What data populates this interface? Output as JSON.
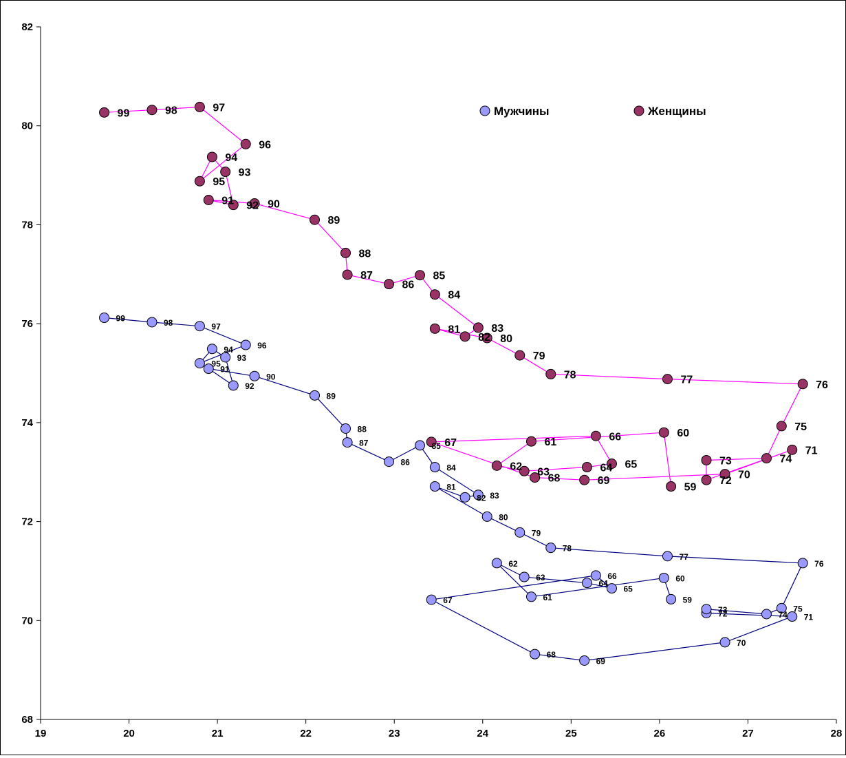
{
  "chart_data": {
    "type": "scatter",
    "title": "",
    "xlabel": "",
    "ylabel": "",
    "xlim": [
      19,
      28
    ],
    "ylim": [
      68,
      82
    ],
    "x_ticks": [
      19,
      20,
      21,
      22,
      23,
      24,
      25,
      26,
      27,
      28
    ],
    "y_ticks": [
      68,
      70,
      72,
      74,
      76,
      78,
      80,
      82
    ],
    "x_tick_labels": [
      "19",
      "20",
      "21",
      "22",
      "23",
      "24",
      "25",
      "26",
      "27",
      "28"
    ],
    "y_tick_labels": [
      "68",
      "70",
      "72",
      "74",
      "76",
      "78",
      "80",
      "82"
    ],
    "legend": {
      "position": "top-right"
    },
    "series": [
      {
        "name": "Мужчины",
        "line_color": "#000080",
        "marker_color": "#9999FF",
        "points": [
          {
            "label": "59",
            "x": 26.13,
            "y": 70.43
          },
          {
            "label": "60",
            "x": 26.05,
            "y": 70.86
          },
          {
            "label": "61",
            "x": 24.55,
            "y": 70.48
          },
          {
            "label": "62",
            "x": 24.16,
            "y": 71.16
          },
          {
            "label": "63",
            "x": 24.47,
            "y": 70.88
          },
          {
            "label": "64",
            "x": 25.18,
            "y": 70.76
          },
          {
            "label": "65",
            "x": 25.46,
            "y": 70.65
          },
          {
            "label": "66",
            "x": 25.28,
            "y": 70.91
          },
          {
            "label": "67",
            "x": 23.42,
            "y": 70.42
          },
          {
            "label": "68",
            "x": 24.59,
            "y": 69.32
          },
          {
            "label": "69",
            "x": 25.15,
            "y": 69.19
          },
          {
            "label": "70",
            "x": 26.74,
            "y": 69.56
          },
          {
            "label": "71",
            "x": 27.5,
            "y": 70.08
          },
          {
            "label": "72",
            "x": 26.53,
            "y": 70.15
          },
          {
            "label": "73",
            "x": 26.53,
            "y": 70.23
          },
          {
            "label": "74",
            "x": 27.21,
            "y": 70.13
          },
          {
            "label": "75",
            "x": 27.38,
            "y": 70.25
          },
          {
            "label": "76",
            "x": 27.62,
            "y": 71.16
          },
          {
            "label": "77",
            "x": 26.09,
            "y": 71.3
          },
          {
            "label": "78",
            "x": 24.77,
            "y": 71.47
          },
          {
            "label": "79",
            "x": 24.42,
            "y": 71.78
          },
          {
            "label": "80",
            "x": 24.05,
            "y": 72.1
          },
          {
            "label": "81",
            "x": 23.46,
            "y": 72.71
          },
          {
            "label": "82",
            "x": 23.8,
            "y": 72.49
          },
          {
            "label": "83",
            "x": 23.95,
            "y": 72.54
          },
          {
            "label": "84",
            "x": 23.46,
            "y": 73.1
          },
          {
            "label": "85",
            "x": 23.29,
            "y": 73.54
          },
          {
            "label": "86",
            "x": 22.94,
            "y": 73.21
          },
          {
            "label": "87",
            "x": 22.47,
            "y": 73.6
          },
          {
            "label": "88",
            "x": 22.45,
            "y": 73.88
          },
          {
            "label": "89",
            "x": 22.1,
            "y": 74.55
          },
          {
            "label": "90",
            "x": 21.42,
            "y": 74.94
          },
          {
            "label": "91",
            "x": 20.9,
            "y": 75.09
          },
          {
            "label": "92",
            "x": 21.18,
            "y": 74.75
          },
          {
            "label": "93",
            "x": 21.09,
            "y": 75.32
          },
          {
            "label": "94",
            "x": 20.94,
            "y": 75.49
          },
          {
            "label": "95",
            "x": 20.8,
            "y": 75.2
          },
          {
            "label": "96",
            "x": 21.32,
            "y": 75.57
          },
          {
            "label": "97",
            "x": 20.8,
            "y": 75.95
          },
          {
            "label": "98",
            "x": 20.26,
            "y": 76.03
          },
          {
            "label": "99",
            "x": 19.72,
            "y": 76.12
          }
        ]
      },
      {
        "name": "Женщины",
        "line_color": "#FF00FF",
        "marker_color": "#993366",
        "points": [
          {
            "label": "59",
            "x": 26.13,
            "y": 72.71
          },
          {
            "label": "60",
            "x": 26.05,
            "y": 73.8
          },
          {
            "label": "61",
            "x": 24.55,
            "y": 73.62
          },
          {
            "label": "62",
            "x": 24.16,
            "y": 73.13
          },
          {
            "label": "63",
            "x": 24.47,
            "y": 73.02
          },
          {
            "label": "64",
            "x": 25.18,
            "y": 73.1
          },
          {
            "label": "65",
            "x": 25.46,
            "y": 73.17
          },
          {
            "label": "66",
            "x": 25.28,
            "y": 73.73
          },
          {
            "label": "67",
            "x": 23.42,
            "y": 73.61
          },
          {
            "label": "68",
            "x": 24.59,
            "y": 72.89
          },
          {
            "label": "69",
            "x": 25.15,
            "y": 72.84
          },
          {
            "label": "70",
            "x": 26.74,
            "y": 72.96
          },
          {
            "label": "71",
            "x": 27.5,
            "y": 73.45
          },
          {
            "label": "72",
            "x": 26.53,
            "y": 72.84
          },
          {
            "label": "73",
            "x": 26.53,
            "y": 73.24
          },
          {
            "label": "74",
            "x": 27.21,
            "y": 73.28
          },
          {
            "label": "75",
            "x": 27.38,
            "y": 73.93
          },
          {
            "label": "76",
            "x": 27.62,
            "y": 74.78
          },
          {
            "label": "77",
            "x": 26.09,
            "y": 74.88
          },
          {
            "label": "78",
            "x": 24.77,
            "y": 74.98
          },
          {
            "label": "79",
            "x": 24.42,
            "y": 75.36
          },
          {
            "label": "80",
            "x": 24.05,
            "y": 75.71
          },
          {
            "label": "81",
            "x": 23.46,
            "y": 75.9
          },
          {
            "label": "82",
            "x": 23.8,
            "y": 75.74
          },
          {
            "label": "83",
            "x": 23.95,
            "y": 75.92
          },
          {
            "label": "84",
            "x": 23.46,
            "y": 76.59
          },
          {
            "label": "85",
            "x": 23.29,
            "y": 76.98
          },
          {
            "label": "86",
            "x": 22.94,
            "y": 76.8
          },
          {
            "label": "87",
            "x": 22.47,
            "y": 76.99
          },
          {
            "label": "88",
            "x": 22.45,
            "y": 77.43
          },
          {
            "label": "89",
            "x": 22.1,
            "y": 78.1
          },
          {
            "label": "90",
            "x": 21.42,
            "y": 78.43
          },
          {
            "label": "91",
            "x": 20.9,
            "y": 78.5
          },
          {
            "label": "92",
            "x": 21.18,
            "y": 78.4
          },
          {
            "label": "93",
            "x": 21.09,
            "y": 79.07
          },
          {
            "label": "94",
            "x": 20.94,
            "y": 79.37
          },
          {
            "label": "95",
            "x": 20.8,
            "y": 78.88
          },
          {
            "label": "96",
            "x": 21.32,
            "y": 79.63
          },
          {
            "label": "97",
            "x": 20.8,
            "y": 80.38
          },
          {
            "label": "98",
            "x": 20.26,
            "y": 80.32
          },
          {
            "label": "99",
            "x": 19.72,
            "y": 80.27
          }
        ]
      }
    ]
  }
}
